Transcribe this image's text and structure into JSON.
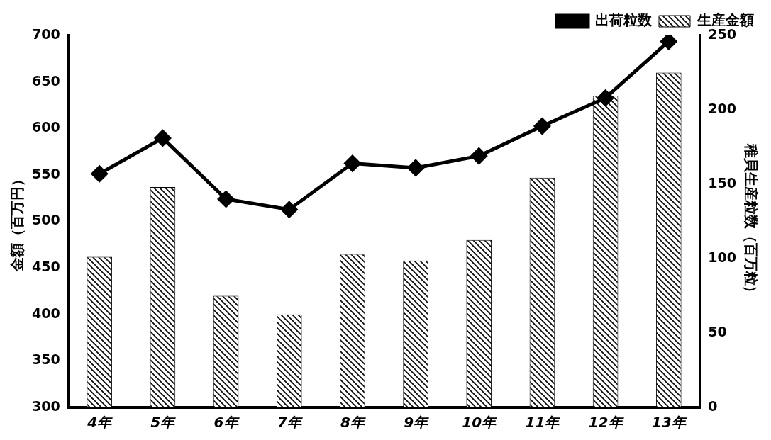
{
  "chart_data": {
    "type": "bar",
    "categories": [
      "4年",
      "5年",
      "6年",
      "7年",
      "8年",
      "9年",
      "10年",
      "11年",
      "12年",
      "13年"
    ],
    "series": [
      {
        "name": "生産金額",
        "type": "bar",
        "color": "#000000",
        "axis": "y",
        "values": [
          462,
          537,
          420,
          400,
          465,
          458,
          480,
          547,
          635,
          660
        ]
      },
      {
        "name": "出荷粒数",
        "type": "line",
        "color": "#000000",
        "axis": "y2",
        "marker": "diamond",
        "line_style": "solid",
        "values": [
          157,
          181,
          140,
          133,
          164,
          161,
          169,
          189,
          208,
          246
        ]
      }
    ],
    "y_label": "金額（百万円）",
    "y2_label": "稚貝生産粒数（百万粒）",
    "ylim": [
      300,
      700
    ],
    "yticks": [
      300,
      350,
      400,
      450,
      500,
      550,
      600,
      650,
      700
    ],
    "y2lim": [
      0,
      250
    ],
    "y2ticks": [
      0,
      50,
      100,
      150,
      200,
      250
    ],
    "grid": false,
    "legend": "top-right"
  }
}
